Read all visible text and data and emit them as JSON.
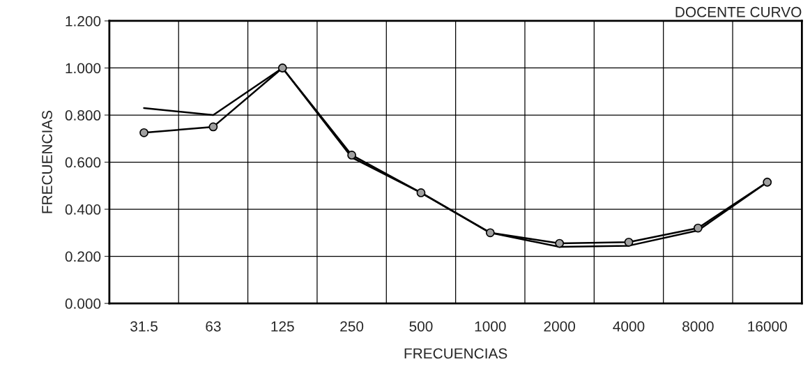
{
  "chart_data": {
    "type": "line",
    "title": "DOCENTE CURVO",
    "xlabel": "FRECUENCIAS",
    "ylabel": "FRECUENCIAS",
    "categories": [
      "31.5",
      "63",
      "125",
      "250",
      "500",
      "1000",
      "2000",
      "4000",
      "8000",
      "16000"
    ],
    "series": [
      {
        "color": "#000000",
        "marker": "circle",
        "values": [
          0.725,
          0.75,
          1.0,
          0.63,
          0.47,
          0.3,
          0.255,
          0.26,
          0.32,
          0.515
        ]
      },
      {
        "color": "#000000",
        "marker": "none",
        "values": [
          0.83,
          0.8,
          1.0,
          0.62,
          0.47,
          0.3,
          0.24,
          0.245,
          0.31,
          0.515
        ]
      }
    ],
    "ylim": [
      0,
      1.2
    ],
    "yticks": [
      {
        "value": 0,
        "label": "0.000"
      },
      {
        "value": 0.2,
        "label": "0.200"
      },
      {
        "value": 0.4,
        "label": "0.400"
      },
      {
        "value": 0.6,
        "label": "0.600"
      },
      {
        "value": 0.8,
        "label": "0.800"
      },
      {
        "value": 1.0,
        "label": "1.000"
      },
      {
        "value": 1.2,
        "label": "1.200"
      }
    ],
    "grid": true,
    "line_style": "solid"
  }
}
